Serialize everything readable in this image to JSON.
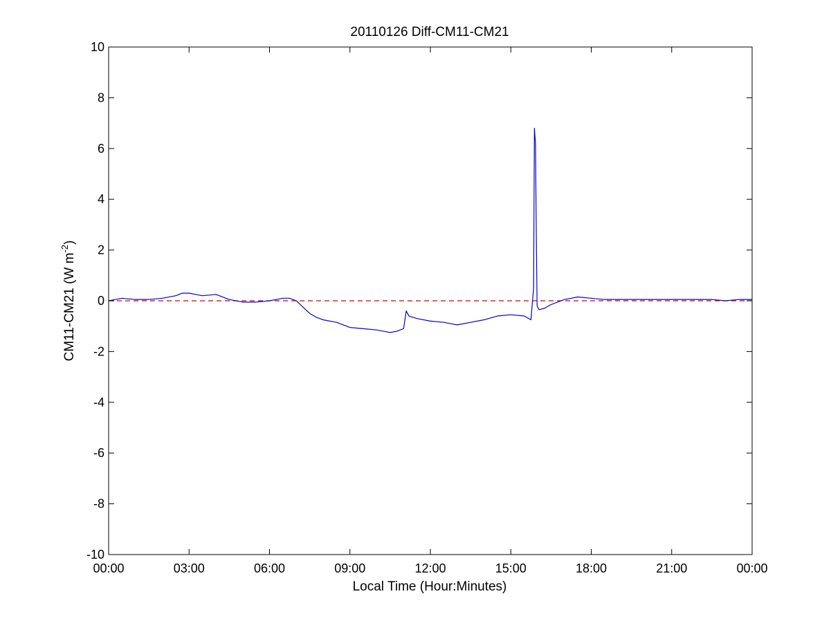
{
  "chart_data": {
    "type": "line",
    "title": "20110126 Diff-CM11-CM21",
    "xlabel": "Local Time (Hour:Minutes)",
    "ylabel": {
      "main": "CM11-CM21 (W m",
      "superscript": "-2",
      "close": ")"
    },
    "x_unit": "hours",
    "xlim": [
      0,
      24
    ],
    "ylim": [
      -10,
      10
    ],
    "x_ticks": [
      0,
      3,
      6,
      9,
      12,
      15,
      18,
      21,
      24
    ],
    "x_tick_labels": [
      "00:00",
      "03:00",
      "06:00",
      "09:00",
      "12:00",
      "15:00",
      "18:00",
      "21:00",
      "00:00"
    ],
    "y_ticks": [
      -10,
      -8,
      -6,
      -4,
      -2,
      0,
      2,
      4,
      6,
      8,
      10
    ],
    "y_tick_labels": [
      "-10",
      "-8",
      "-6",
      "-4",
      "-2",
      "0",
      "2",
      "4",
      "6",
      "8",
      "10"
    ],
    "grid": false,
    "reference_line": {
      "y": 0,
      "color": "#cc0000",
      "style": "dashed"
    },
    "series": [
      {
        "color": "#0000cc",
        "x": [
          0,
          0.25,
          0.5,
          1,
          1.5,
          2,
          2.5,
          2.75,
          3,
          3.25,
          3.5,
          4,
          4.25,
          4.5,
          5,
          5.25,
          5.5,
          6,
          6.25,
          6.5,
          6.75,
          7,
          7.25,
          7.5,
          7.75,
          8,
          8.5,
          9,
          9.5,
          10,
          10.25,
          10.5,
          10.75,
          11,
          11.1,
          11.2,
          11.5,
          12,
          12.5,
          12.75,
          13,
          13.5,
          14,
          14.5,
          15,
          15.5,
          15.75,
          15.85,
          15.88,
          15.92,
          15.95,
          15.98,
          16.05,
          16.25,
          16.5,
          17,
          17.5,
          18,
          18.5,
          19,
          19.5,
          20,
          20.5,
          21,
          21.5,
          22,
          22.5,
          23,
          23.5,
          24
        ],
        "y": [
          0.0,
          0.05,
          0.1,
          0.05,
          0.05,
          0.1,
          0.2,
          0.3,
          0.3,
          0.25,
          0.2,
          0.25,
          0.15,
          0.05,
          -0.05,
          -0.05,
          -0.05,
          0.0,
          0.05,
          0.1,
          0.1,
          0.0,
          -0.25,
          -0.5,
          -0.65,
          -0.75,
          -0.85,
          -1.05,
          -1.1,
          -1.15,
          -1.2,
          -1.25,
          -1.2,
          -1.1,
          -0.4,
          -0.6,
          -0.7,
          -0.8,
          -0.85,
          -0.9,
          -0.95,
          -0.85,
          -0.75,
          -0.6,
          -0.55,
          -0.6,
          -0.75,
          0.5,
          6.8,
          6.2,
          2.7,
          -0.2,
          -0.35,
          -0.3,
          -0.15,
          0.05,
          0.15,
          0.1,
          0.05,
          0.05,
          0.05,
          0.05,
          0.05,
          0.05,
          0.05,
          0.05,
          0.05,
          0.0,
          0.05,
          0.05
        ]
      }
    ]
  }
}
